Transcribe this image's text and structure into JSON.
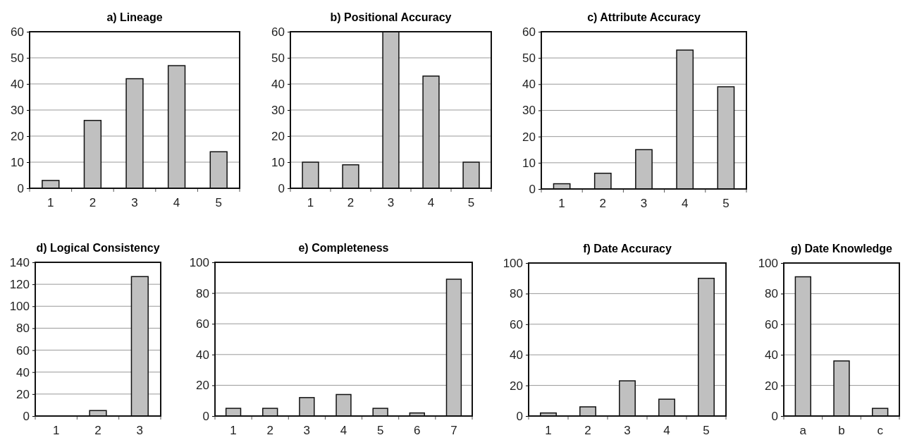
{
  "chart_data": [
    {
      "type": "bar",
      "title": "a) Lineage",
      "categories": [
        "1",
        "2",
        "3",
        "4",
        "5"
      ],
      "values": [
        3,
        26,
        42,
        47,
        14
      ],
      "color": "#c0c0c0",
      "ylim": [
        0,
        60
      ],
      "yticks": [
        0,
        10,
        20,
        30,
        40,
        50,
        60
      ],
      "grid": "y"
    },
    {
      "type": "bar",
      "title": "b) Positional Accuracy",
      "categories": [
        "1",
        "2",
        "3",
        "4",
        "5"
      ],
      "values": [
        10,
        9,
        60,
        43,
        10
      ],
      "color": "#c0c0c0",
      "ylim": [
        0,
        60
      ],
      "yticks": [
        0,
        10,
        20,
        30,
        40,
        50,
        60
      ],
      "grid": "y"
    },
    {
      "type": "bar",
      "title": "c) Attribute Accuracy",
      "categories": [
        "1",
        "2",
        "3",
        "4",
        "5"
      ],
      "values": [
        2,
        6,
        15,
        53,
        39
      ],
      "color": "#c0c0c0",
      "ylim": [
        0,
        60
      ],
      "yticks": [
        0,
        10,
        20,
        30,
        40,
        50,
        60
      ],
      "grid": "y"
    },
    {
      "type": "bar",
      "title": "d) Logical Consistency",
      "categories": [
        "1",
        "2",
        "3"
      ],
      "values": [
        0,
        5,
        127
      ],
      "color": "#c0c0c0",
      "ylim": [
        0,
        140
      ],
      "yticks": [
        0,
        20,
        40,
        60,
        80,
        100,
        120,
        140
      ],
      "grid": "y"
    },
    {
      "type": "bar",
      "title": "e) Completeness",
      "categories": [
        "1",
        "2",
        "3",
        "4",
        "5",
        "6",
        "7"
      ],
      "values": [
        5,
        5,
        12,
        14,
        5,
        2,
        89
      ],
      "color": "#c0c0c0",
      "ylim": [
        0,
        100
      ],
      "yticks": [
        0,
        20,
        40,
        60,
        80,
        100
      ],
      "grid": "y"
    },
    {
      "type": "bar",
      "title": "f) Date Accuracy",
      "categories": [
        "1",
        "2",
        "3",
        "4",
        "5"
      ],
      "values": [
        2,
        6,
        23,
        11,
        90
      ],
      "color": "#c0c0c0",
      "ylim": [
        0,
        100
      ],
      "yticks": [
        0,
        20,
        40,
        60,
        80,
        100
      ],
      "grid": "y"
    },
    {
      "type": "bar",
      "title": "g) Date Knowledge",
      "categories": [
        "a",
        "b",
        "c"
      ],
      "values": [
        91,
        36,
        5
      ],
      "color": "#c0c0c0",
      "ylim": [
        0,
        100
      ],
      "yticks": [
        0,
        20,
        40,
        60,
        80,
        100
      ],
      "grid": "y"
    }
  ]
}
